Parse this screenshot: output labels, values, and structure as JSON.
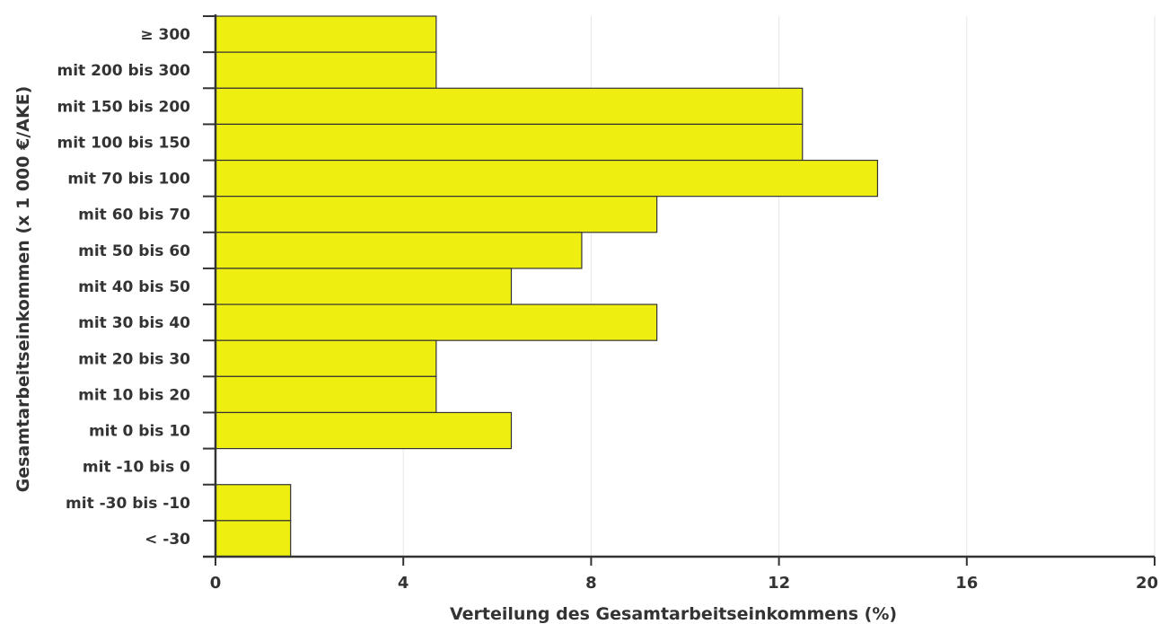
{
  "chart_data": {
    "type": "bar",
    "orientation": "horizontal",
    "categories": [
      "≥ 300",
      "mit 200 bis 300",
      "mit 150 bis 200",
      "mit 100 bis 150",
      "mit 70 bis 100",
      "mit 60 bis 70",
      "mit 50 bis 60",
      "mit 40 bis 50",
      "mit 30 bis 40",
      "mit 20 bis 30",
      "mit 10 bis 20",
      "mit 0 bis 10",
      "mit -10 bis 0",
      "mit -30 bis -10",
      "< -30"
    ],
    "values": [
      4.7,
      4.7,
      12.5,
      12.5,
      14.1,
      9.4,
      7.8,
      6.3,
      9.4,
      4.7,
      4.7,
      6.3,
      0,
      1.6,
      1.6
    ],
    "xlabel": "Verteilung des Gesamtarbeitseinkommens (%)",
    "ylabel": "Gesamtarbeitseinkommen (x 1 000 €/AKE)",
    "xlim": [
      0,
      20
    ],
    "xticks": [
      0,
      4,
      8,
      12,
      16,
      20
    ],
    "grid": "vertical",
    "bar_color": "#eeee11",
    "bar_stroke": "#333333",
    "grid_color": "#e6e6e6",
    "axis_color": "#333333"
  }
}
